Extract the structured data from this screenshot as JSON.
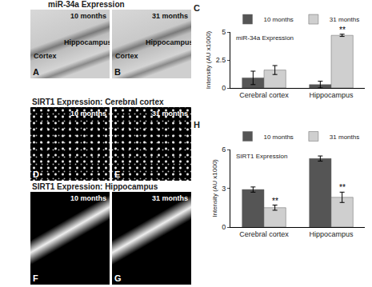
{
  "figure_sections": [
    {
      "title": "miR-34a Expression",
      "panels": [
        {
          "panel_label": "A",
          "label": "10 months",
          "regions": [
            "Cortex",
            "Hippocampus"
          ]
        },
        {
          "panel_label": "B",
          "label": "31 months",
          "regions": [
            "Cortex",
            "Hippocampus"
          ]
        }
      ]
    },
    {
      "title": "SIRT1 Expression: Cerebral cortex",
      "panels": [
        {
          "panel_label": "D",
          "label": "10 months"
        },
        {
          "panel_label": "E",
          "label": "31 months"
        }
      ]
    },
    {
      "title": "SIRT1 Expression: Hippocampus",
      "panels": [
        {
          "panel_label": "F",
          "label": "10 months"
        },
        {
          "panel_label": "G",
          "label": "31 months"
        }
      ]
    }
  ],
  "chart_data": [
    {
      "type": "bar",
      "panel_label": "C",
      "title": "miR-34a Expression",
      "y_label": "Intensity (AU x1000)",
      "categories": [
        "Cerebral cortex",
        "Hippocampus"
      ],
      "series": [
        {
          "name": "10 months",
          "color": "#555555",
          "values": [
            0.9,
            0.3
          ],
          "errors": [
            0.6,
            0.3
          ]
        },
        {
          "name": "31 months",
          "color": "#cfcfcf",
          "values": [
            1.6,
            4.7
          ],
          "errors": [
            0.4,
            0.1
          ]
        }
      ],
      "annotations": [
        {
          "category": "Hippocampus",
          "series": "31 months",
          "text": "**"
        }
      ],
      "ylim": [
        0,
        5
      ],
      "yticks": [
        0,
        2.5,
        5
      ],
      "legend": "top",
      "grid": false
    },
    {
      "type": "bar",
      "panel_label": "H",
      "title": "SIRT1 Expression",
      "y_label": "Intensity (AU x1000)",
      "categories": [
        "Cerebral cortex",
        "Hippocampus"
      ],
      "series": [
        {
          "name": "10 months",
          "color": "#555555",
          "values": [
            2.9,
            5.3
          ],
          "errors": [
            0.2,
            0.2
          ]
        },
        {
          "name": "31 months",
          "color": "#cfcfcf",
          "values": [
            1.5,
            2.3
          ],
          "errors": [
            0.2,
            0.4
          ]
        }
      ],
      "annotations": [
        {
          "category": "Cerebral cortex",
          "series": "31 months",
          "text": "**"
        },
        {
          "category": "Hippocampus",
          "series": "31 months",
          "text": "**"
        }
      ],
      "ylim": [
        0,
        6
      ],
      "yticks": [
        0,
        3,
        6
      ],
      "legend": "top",
      "grid": false
    }
  ]
}
